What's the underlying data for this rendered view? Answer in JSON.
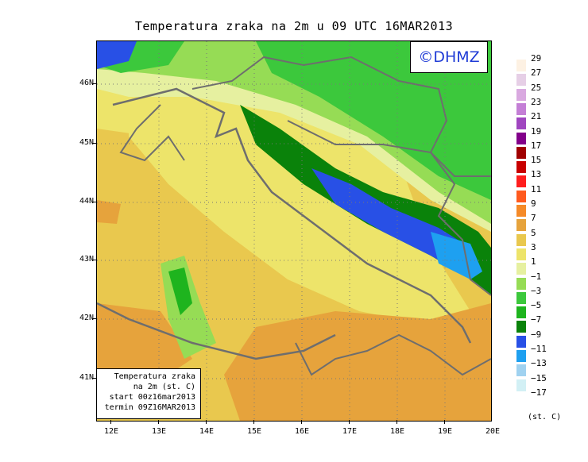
{
  "title": "Temperatura zraka na 2m u 09 UTC 16MAR2013",
  "logo": "©DHMZ",
  "info_box": {
    "line1": "Temperatura zraka",
    "line2": "na 2m (st. C)",
    "line3": "start 00z16mar2013",
    "line4": "termin 09Z16MAR2013"
  },
  "lat_labels": [
    "46N",
    "45N",
    "44N",
    "43N",
    "42N",
    "41N"
  ],
  "lon_labels": [
    "12E",
    "13E",
    "14E",
    "15E",
    "16E",
    "17E",
    "18E",
    "19E",
    "20E"
  ],
  "legend": {
    "unit": "(st. C)",
    "labels": [
      "29",
      "27",
      "25",
      "23",
      "21",
      "19",
      "17",
      "15",
      "13",
      "11",
      "9",
      "7",
      "5",
      "3",
      "1",
      "−1",
      "−3",
      "−5",
      "−7",
      "−9",
      "−11",
      "−13",
      "−15",
      "−17"
    ],
    "colors": [
      "#fdf1e3",
      "#e6cfe6",
      "#d9a9e0",
      "#c47fd6",
      "#a046c0",
      "#82008a",
      "#a00000",
      "#c80000",
      "#ff1e1e",
      "#ff5a1e",
      "#f58a28",
      "#e6a33c",
      "#e9c84e",
      "#ede46a",
      "#e6f0a0",
      "#96dc55",
      "#3cc83c",
      "#1eb41e",
      "#0a820a",
      "#2850e6",
      "#1ea0f0",
      "#a0d2f0",
      "#d2f0f5"
    ]
  }
}
